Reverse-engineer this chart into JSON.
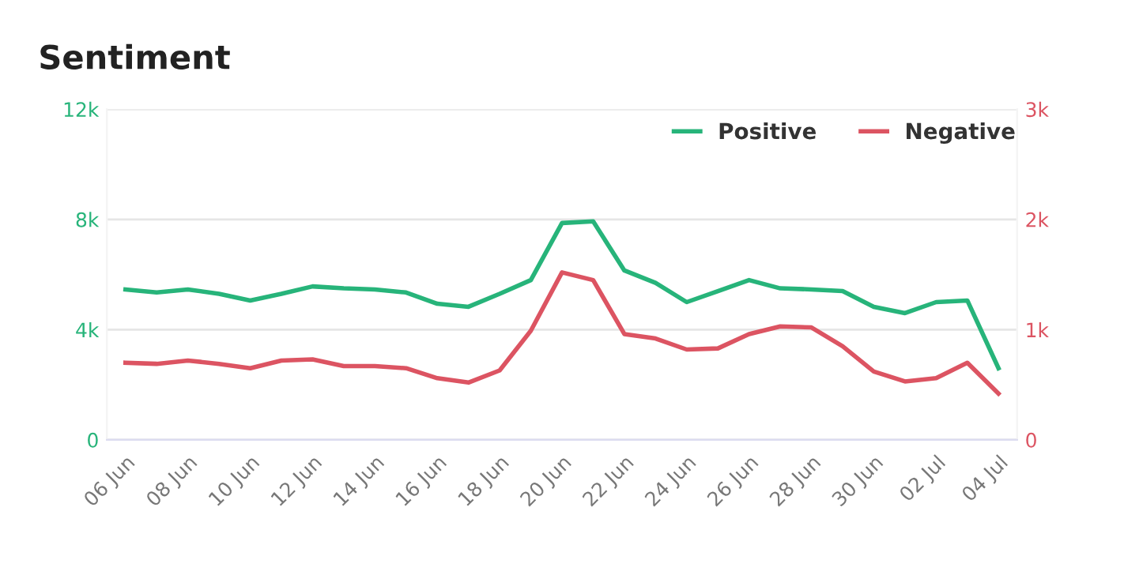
{
  "chart_data": {
    "type": "line",
    "title": "Sentiment",
    "categories": [
      "06 Jun",
      null,
      "08 Jun",
      null,
      "10 Jun",
      null,
      "12 Jun",
      null,
      "14 Jun",
      null,
      "16 Jun",
      null,
      "18 Jun",
      null,
      "20 Jun",
      null,
      "22 Jun",
      null,
      "24 Jun",
      null,
      "26 Jun",
      null,
      "28 Jun",
      null,
      "30 Jun",
      null,
      "02 Jul",
      null,
      "04 Jul"
    ],
    "series": [
      {
        "name": "Positive",
        "color": "#27b47a",
        "values": [
          5.46,
          5.35,
          5.46,
          5.3,
          5.06,
          5.3,
          5.57,
          5.5,
          5.46,
          5.35,
          4.94,
          4.83,
          5.3,
          5.8,
          7.87,
          7.93,
          6.15,
          5.7,
          5.0,
          5.4,
          5.8,
          5.5,
          5.46,
          5.4,
          4.83,
          4.6,
          5.0,
          5.06,
          2.6
        ]
      },
      {
        "name": "Negative",
        "color": "#dc5462",
        "axis": "y2",
        "values": [
          0.7,
          0.69,
          0.72,
          0.69,
          0.65,
          0.72,
          0.73,
          0.67,
          0.67,
          0.65,
          0.56,
          0.52,
          0.63,
          0.99,
          1.52,
          1.45,
          0.96,
          0.92,
          0.82,
          0.83,
          0.96,
          1.03,
          1.02,
          0.85,
          0.62,
          0.53,
          0.56,
          0.7,
          0.42
        ]
      }
    ],
    "ylim": [
      0,
      12
    ],
    "yticks": [
      0,
      {
        "value": 4,
        "label": "4k"
      },
      {
        "value": 8,
        "label": "8k"
      },
      {
        "value": 12,
        "label": "12k"
      }
    ],
    "y2lim": [
      0,
      3
    ],
    "y2ticks": [
      0,
      {
        "value": 1,
        "label": "1k"
      },
      {
        "value": 2,
        "label": "2k"
      },
      {
        "value": 3,
        "label": "3k"
      }
    ],
    "grid": "y",
    "legend": "top right",
    "marker": "none",
    "line_style": "solid"
  }
}
